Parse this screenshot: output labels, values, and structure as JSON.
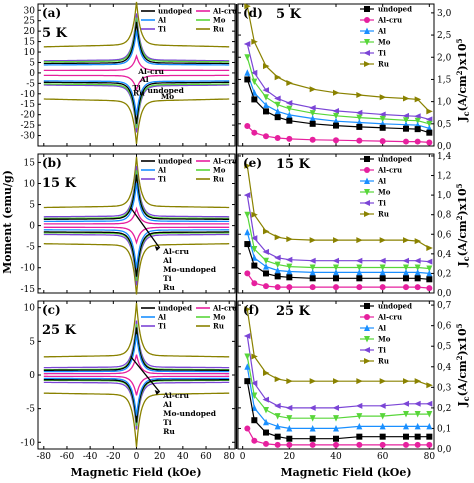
{
  "figure": {
    "x_label": "Magnetic Field (kOe)",
    "left_y_label": "Moment (emu/g)",
    "right_y_label_base": "J",
    "right_y_label_sub": "c",
    "right_y_label_rest": "(A/cm",
    "right_y_label_sup": "2",
    "right_y_label_tail": ")x10",
    "right_y_label_exp": "5"
  },
  "colors": {
    "undoped": "#000000",
    "Al-cru": "#e6209e",
    "Al": "#1a8fff",
    "Mo": "#58d63a",
    "Ti": "#7b45d6",
    "Ru": "#8a8200"
  },
  "chart_data": [
    {
      "id": "a",
      "type": "line",
      "panel_label": "(a)",
      "temperature": "5 K",
      "xlim": [
        -85,
        85
      ],
      "ylim": [
        -35,
        33
      ],
      "xticks": [
        "-80",
        "-60",
        "-40",
        "-20",
        "0",
        "20",
        "40",
        "60",
        "80"
      ],
      "yticks": [
        "-30",
        "-25",
        "-20",
        "-15",
        "-10",
        "-5",
        "0",
        "5",
        "10",
        "15",
        "20",
        "25",
        "30"
      ],
      "legend": [
        "undoped",
        "Al-cru",
        "Al",
        "Mo",
        "Ti",
        "Ru"
      ],
      "annotations": [
        "Al-cru",
        "Al",
        "Ti",
        "Ru",
        "undoped",
        "Mo"
      ],
      "series": [
        {
          "name": "undoped",
          "m_high": 4.5,
          "m_peak": 24
        },
        {
          "name": "Al-cru",
          "m_high": 1.2,
          "m_peak": 8
        },
        {
          "name": "Al",
          "m_high": 3.8,
          "m_peak": 20
        },
        {
          "name": "Mo",
          "m_high": 5.3,
          "m_peak": 26
        },
        {
          "name": "Ti",
          "m_high": 5.8,
          "m_peak": 28
        },
        {
          "name": "Ru",
          "m_high": 12.5,
          "m_peak": 33
        }
      ]
    },
    {
      "id": "b",
      "type": "line",
      "panel_label": "(b)",
      "temperature": "15 K",
      "xlim": [
        -85,
        85
      ],
      "ylim": [
        -16,
        17
      ],
      "xticks": [
        "-80",
        "-60",
        "-40",
        "-20",
        "0",
        "20",
        "40",
        "60",
        "80"
      ],
      "yticks": [
        "-15",
        "-10",
        "-5",
        "0",
        "5",
        "10",
        "15"
      ],
      "legend": [
        "undoped",
        "Al-cru",
        "Al",
        "Mo",
        "Ti",
        "Ru"
      ],
      "annotations": [
        "Al-cru",
        "Al",
        "Mo-undoped",
        "Ti",
        "Ru"
      ],
      "series": [
        {
          "name": "undoped",
          "m_high": 1.5,
          "m_peak": 12
        },
        {
          "name": "Al-cru",
          "m_high": 0.4,
          "m_peak": 4
        },
        {
          "name": "Al",
          "m_high": 1.0,
          "m_peak": 10
        },
        {
          "name": "Mo",
          "m_high": 1.7,
          "m_peak": 13
        },
        {
          "name": "Ti",
          "m_high": 2.1,
          "m_peak": 14
        },
        {
          "name": "Ru",
          "m_high": 4.3,
          "m_peak": 16
        }
      ]
    },
    {
      "id": "c",
      "type": "line",
      "panel_label": "(c)",
      "temperature": "25 K",
      "xlim": [
        -85,
        85
      ],
      "ylim": [
        -11,
        11
      ],
      "xticks": [
        "-80",
        "-60",
        "-40",
        "-20",
        "0",
        "20",
        "40",
        "60",
        "80"
      ],
      "yticks": [
        "-10",
        "-5",
        "0",
        "5",
        "10"
      ],
      "legend": [
        "undoped",
        "Al-cru",
        "Al",
        "Mo",
        "Ti",
        "Ru"
      ],
      "annotations": [
        "Al-cru",
        "Al",
        "Mo-undoped",
        "Ti",
        "Ru"
      ],
      "series": [
        {
          "name": "undoped",
          "m_high": 0.7,
          "m_peak": 7
        },
        {
          "name": "Al-cru",
          "m_high": 0.2,
          "m_peak": 3
        },
        {
          "name": "Al",
          "m_high": 0.5,
          "m_peak": 6
        },
        {
          "name": "Mo",
          "m_high": 0.8,
          "m_peak": 7.5
        },
        {
          "name": "Ti",
          "m_high": 1.1,
          "m_peak": 8
        },
        {
          "name": "Ru",
          "m_high": 2.7,
          "m_peak": 10.5
        }
      ]
    },
    {
      "id": "d",
      "type": "line",
      "panel_label": "(d)",
      "temperature": "5 K",
      "xlim": [
        -2,
        82
      ],
      "ylim": [
        0,
        3.2
      ],
      "xticks": [
        "0",
        "20",
        "40",
        "60",
        "80"
      ],
      "yticks": [
        "0,0",
        "0,5",
        "1,0",
        "1,5",
        "2,0",
        "2,5",
        "3,0"
      ],
      "x": [
        2,
        5,
        10,
        15,
        20,
        30,
        40,
        50,
        60,
        70,
        75,
        80
      ],
      "series": [
        {
          "name": "undoped",
          "marker": "square",
          "values": [
            1.5,
            1.05,
            0.78,
            0.65,
            0.57,
            0.5,
            0.46,
            0.43,
            0.41,
            0.39,
            0.38,
            0.3
          ]
        },
        {
          "name": "Al-cru",
          "marker": "circle",
          "values": [
            0.45,
            0.3,
            0.22,
            0.18,
            0.16,
            0.14,
            0.13,
            0.12,
            0.11,
            0.1,
            0.1,
            0.08
          ]
        },
        {
          "name": "Al",
          "marker": "triangle-up",
          "values": [
            1.65,
            1.2,
            0.92,
            0.78,
            0.7,
            0.62,
            0.56,
            0.53,
            0.5,
            0.48,
            0.47,
            0.4
          ]
        },
        {
          "name": "Mo",
          "marker": "triangle-down",
          "values": [
            2.0,
            1.45,
            1.1,
            0.93,
            0.84,
            0.74,
            0.68,
            0.64,
            0.61,
            0.58,
            0.57,
            0.5
          ]
        },
        {
          "name": "Ti",
          "marker": "triangle-left",
          "values": [
            2.3,
            1.65,
            1.26,
            1.07,
            0.97,
            0.86,
            0.79,
            0.75,
            0.71,
            0.68,
            0.67,
            0.6
          ]
        },
        {
          "name": "Ru",
          "marker": "triangle-right",
          "values": [
            3.15,
            2.35,
            1.8,
            1.55,
            1.42,
            1.28,
            1.2,
            1.15,
            1.1,
            1.07,
            1.05,
            0.78
          ]
        }
      ]
    },
    {
      "id": "e",
      "type": "line",
      "panel_label": "(e)",
      "temperature": "15 K",
      "xlim": [
        -2,
        82
      ],
      "ylim": [
        0,
        1.42
      ],
      "xticks": [
        "0",
        "20",
        "40",
        "60",
        "80"
      ],
      "yticks": [
        "0,0",
        "0,2",
        "0,4",
        "0,6",
        "0,8",
        "1,0",
        "1,2",
        "1,4"
      ],
      "x": [
        2,
        5,
        10,
        15,
        20,
        30,
        40,
        50,
        60,
        70,
        75,
        80
      ],
      "series": [
        {
          "name": "undoped",
          "marker": "square",
          "values": [
            0.5,
            0.28,
            0.2,
            0.17,
            0.16,
            0.15,
            0.15,
            0.15,
            0.15,
            0.15,
            0.15,
            0.14
          ]
        },
        {
          "name": "Al-cru",
          "marker": "circle",
          "values": [
            0.2,
            0.1,
            0.07,
            0.06,
            0.06,
            0.06,
            0.06,
            0.06,
            0.06,
            0.06,
            0.06,
            0.05
          ]
        },
        {
          "name": "Al",
          "marker": "triangle-up",
          "values": [
            0.62,
            0.36,
            0.27,
            0.23,
            0.22,
            0.21,
            0.21,
            0.21,
            0.21,
            0.21,
            0.21,
            0.2
          ]
        },
        {
          "name": "Mo",
          "marker": "triangle-down",
          "values": [
            0.8,
            0.45,
            0.33,
            0.29,
            0.27,
            0.26,
            0.26,
            0.26,
            0.26,
            0.26,
            0.26,
            0.25
          ]
        },
        {
          "name": "Ti",
          "marker": "triangle-left",
          "values": [
            1.0,
            0.56,
            0.42,
            0.36,
            0.34,
            0.33,
            0.33,
            0.33,
            0.33,
            0.33,
            0.33,
            0.32
          ]
        },
        {
          "name": "Ru",
          "marker": "triangle-right",
          "values": [
            1.3,
            0.8,
            0.63,
            0.57,
            0.55,
            0.54,
            0.54,
            0.54,
            0.54,
            0.54,
            0.53,
            0.46
          ]
        }
      ]
    },
    {
      "id": "f",
      "type": "line",
      "panel_label": "(f)",
      "temperature": "25 K",
      "xlim": [
        -2,
        82
      ],
      "ylim": [
        0,
        0.72
      ],
      "xticks": [
        "0",
        "20",
        "40",
        "60",
        "80"
      ],
      "yticks": [
        "0,0",
        "0,1",
        "0,2",
        "0,3",
        "0,4",
        "0,5",
        "0,6",
        "0,7"
      ],
      "x": [
        2,
        5,
        10,
        15,
        20,
        30,
        40,
        50,
        60,
        70,
        75,
        80
      ],
      "series": [
        {
          "name": "undoped",
          "marker": "square",
          "values": [
            0.33,
            0.14,
            0.08,
            0.06,
            0.05,
            0.05,
            0.05,
            0.06,
            0.06,
            0.06,
            0.06,
            0.06
          ]
        },
        {
          "name": "Al-cru",
          "marker": "circle",
          "values": [
            0.1,
            0.04,
            0.025,
            0.02,
            0.02,
            0.02,
            0.02,
            0.02,
            0.02,
            0.02,
            0.02,
            0.02
          ]
        },
        {
          "name": "Al",
          "marker": "triangle-up",
          "values": [
            0.4,
            0.2,
            0.13,
            0.11,
            0.1,
            0.1,
            0.1,
            0.11,
            0.11,
            0.11,
            0.11,
            0.11
          ]
        },
        {
          "name": "Mo",
          "marker": "triangle-down",
          "values": [
            0.45,
            0.26,
            0.19,
            0.16,
            0.15,
            0.15,
            0.15,
            0.16,
            0.16,
            0.17,
            0.17,
            0.17
          ]
        },
        {
          "name": "Ti",
          "marker": "triangle-left",
          "values": [
            0.55,
            0.32,
            0.24,
            0.21,
            0.2,
            0.2,
            0.2,
            0.21,
            0.21,
            0.22,
            0.22,
            0.22
          ]
        },
        {
          "name": "Ru",
          "marker": "triangle-right",
          "values": [
            0.68,
            0.45,
            0.37,
            0.34,
            0.33,
            0.33,
            0.33,
            0.33,
            0.33,
            0.33,
            0.33,
            0.31
          ]
        }
      ]
    }
  ]
}
